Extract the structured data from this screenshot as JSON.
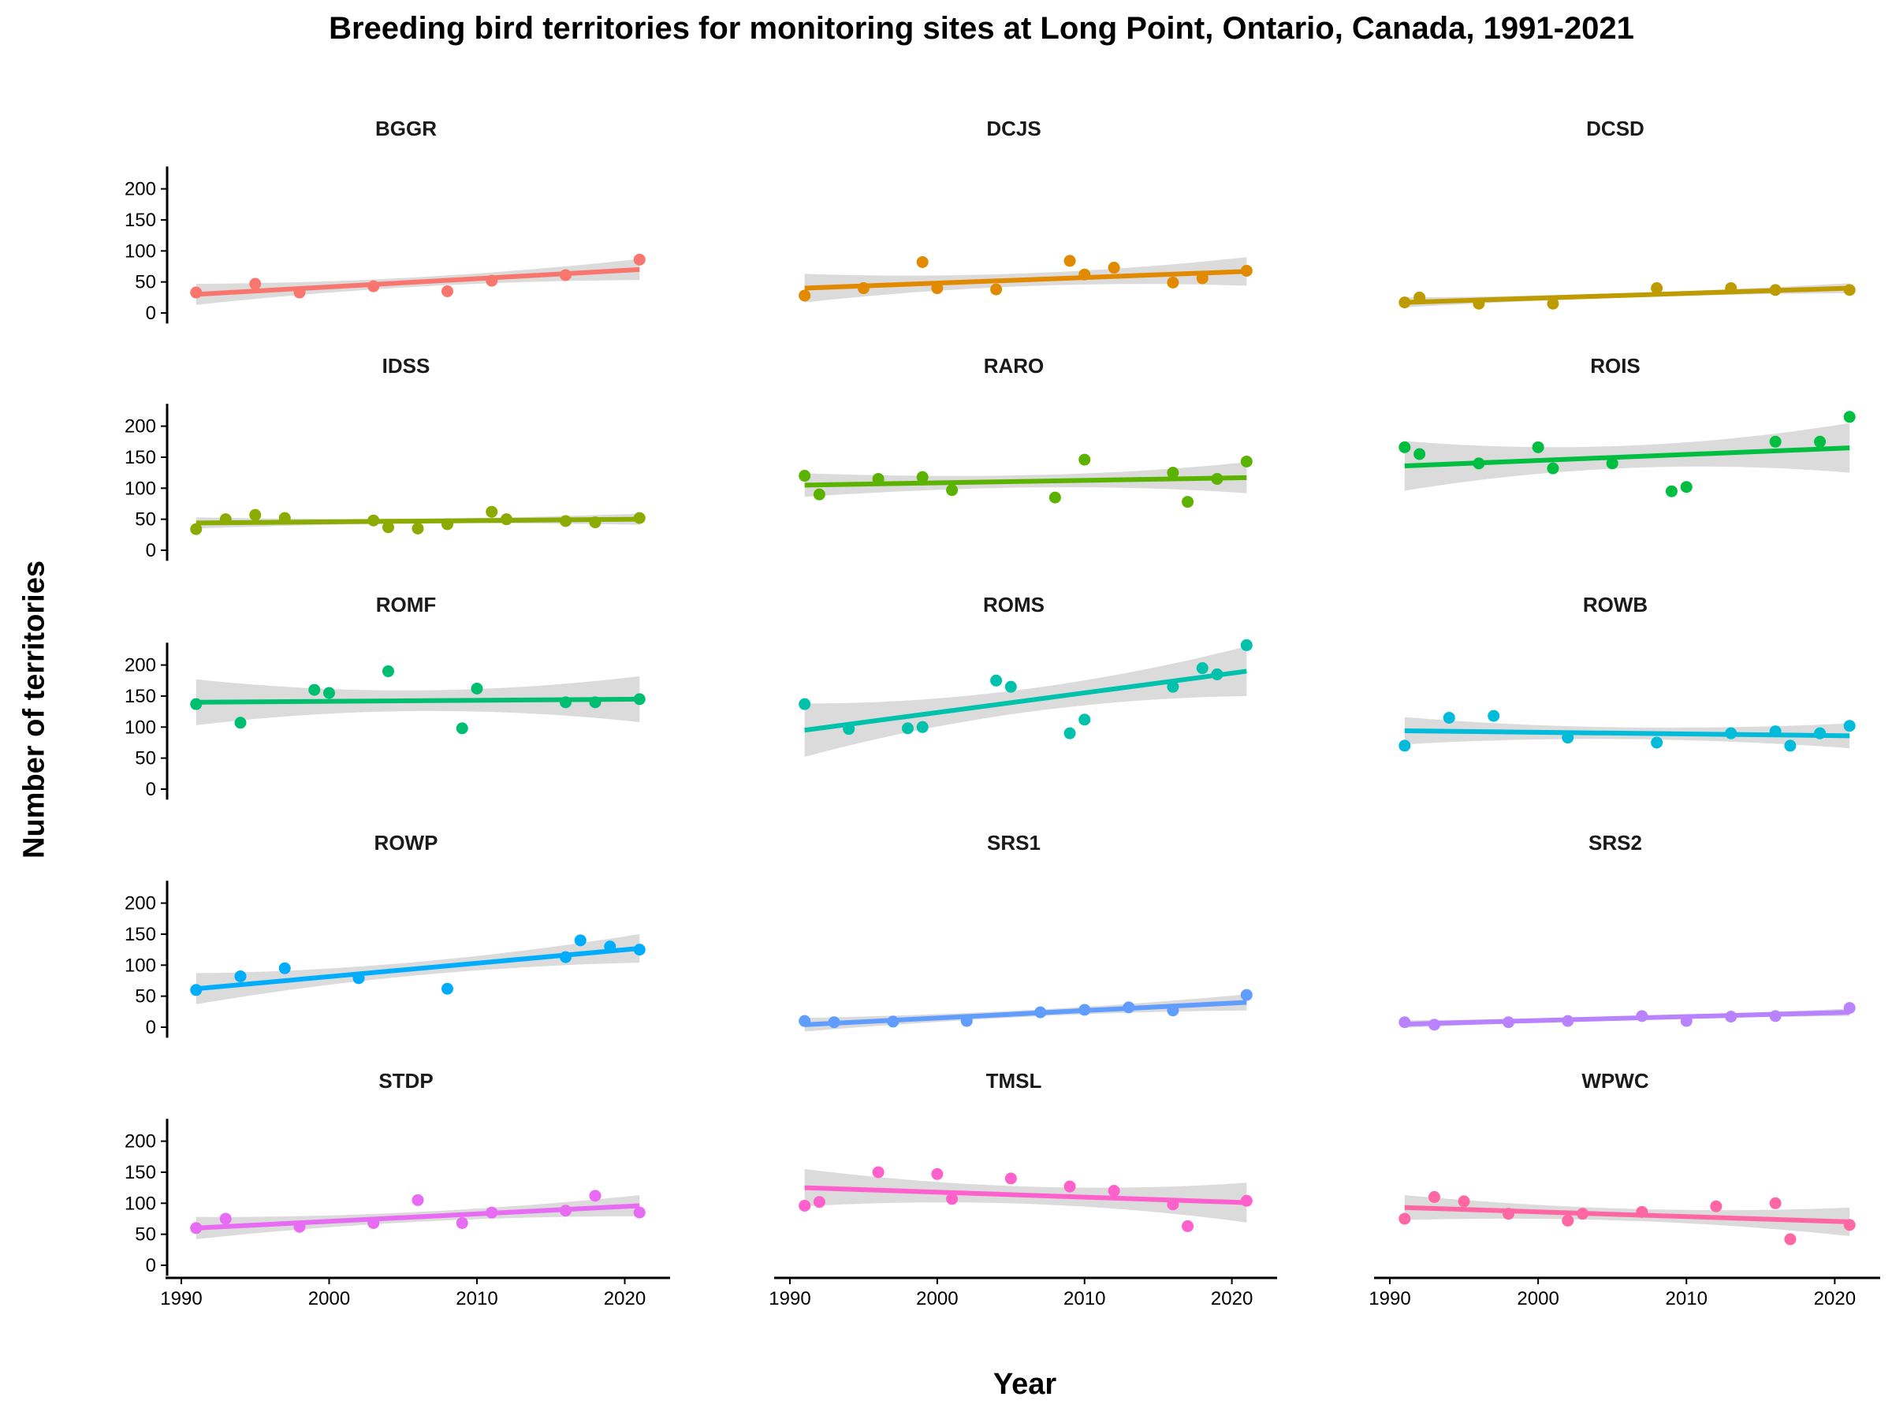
{
  "chart_data": {
    "type": "scatter",
    "title": "Breeding bird territories for monitoring sites at Long Point, Ontario, Canada, 1991-2021",
    "xlabel": "Year",
    "ylabel": "Number of territories",
    "xlim": [
      1990,
      2022
    ],
    "ylim": [
      0,
      240
    ],
    "xticks": [
      1990,
      2000,
      2010,
      2020
    ],
    "yticks": [
      0,
      50,
      100,
      150,
      200
    ],
    "panels": [
      {
        "name": "BGGR",
        "color": "#F8766D",
        "x": [
          1991,
          1995,
          1998,
          2003,
          2008,
          2011,
          2016,
          2021
        ],
        "y": [
          33,
          47,
          33,
          43,
          35,
          52,
          61,
          86
        ],
        "fit": [
          30,
          70
        ],
        "ci_width": [
          17,
          17
        ]
      },
      {
        "name": "DCJS",
        "color": "#E18A00",
        "x": [
          1991,
          1995,
          1999,
          2000,
          2004,
          2009,
          2010,
          2012,
          2016,
          2018,
          2021
        ],
        "y": [
          28,
          40,
          82,
          40,
          38,
          84,
          62,
          73,
          49,
          56,
          68
        ],
        "fit": [
          40,
          67
        ],
        "ci_width": [
          23,
          23
        ]
      },
      {
        "name": "DCSD",
        "color": "#BE9C00",
        "x": [
          1991,
          1992,
          1996,
          2001,
          2008,
          2013,
          2016,
          2021
        ],
        "y": [
          17,
          25,
          15,
          15,
          40,
          40,
          37,
          37
        ],
        "fit": [
          17,
          40
        ],
        "ci_width": [
          8,
          8
        ]
      },
      {
        "name": "IDSS",
        "color": "#8CAB00",
        "x": [
          1991,
          1993,
          1995,
          1997,
          2003,
          2004,
          2006,
          2008,
          2011,
          2012,
          2016,
          2018,
          2021
        ],
        "y": [
          34,
          50,
          57,
          52,
          48,
          37,
          35,
          42,
          62,
          50,
          47,
          45,
          52
        ],
        "fit": [
          44,
          50
        ],
        "ci_width": [
          9,
          9
        ]
      },
      {
        "name": "RARO",
        "color": "#24B700",
        "x": [
          1991,
          1992,
          1996,
          1999,
          2001,
          2008,
          2010,
          2016,
          2017,
          2019,
          2021
        ],
        "y": [
          120,
          90,
          115,
          118,
          97,
          85,
          146,
          125,
          78,
          115,
          143
        ],
        "fit": [
          105,
          117
        ],
        "ci_width": [
          19,
          25
        ]
      },
      {
        "name": "ROIS",
        "color": "#00BE70",
        "x": [
          1991,
          1992,
          1996,
          2000,
          2001,
          2005,
          2009,
          2010,
          2016,
          2019,
          2021
        ],
        "y": [
          166,
          155,
          140,
          166,
          132,
          140,
          95,
          102,
          175,
          175,
          215
        ],
        "fit": [
          136,
          165
        ],
        "ci_width": [
          40,
          40
        ]
      },
      {
        "name": "ROMF",
        "color": "#00C1AB",
        "x": [
          1991,
          1994,
          1999,
          2000,
          2004,
          2010,
          2009,
          2016,
          2018,
          2021
        ],
        "y": [
          137,
          107,
          160,
          155,
          190,
          162,
          98,
          140,
          140,
          145
        ],
        "fit": [
          140,
          145
        ],
        "ci_width": [
          37,
          37
        ]
      },
      {
        "name": "ROMS",
        "color": "#00BBDA",
        "x": [
          1991,
          1994,
          1998,
          1999,
          2004,
          2005,
          2009,
          2010,
          2016,
          2018,
          2019,
          2021
        ],
        "y": [
          137,
          97,
          98,
          100,
          175,
          165,
          90,
          112,
          165,
          195,
          185,
          232
        ],
        "fit": [
          95,
          190
        ],
        "ci_width": [
          43,
          40
        ]
      },
      {
        "name": "ROWB",
        "color": "#00ACFC",
        "x": [
          1991,
          1994,
          1997,
          2002,
          2008,
          2013,
          2016,
          2017,
          2019,
          2021
        ],
        "y": [
          70,
          115,
          118,
          83,
          75,
          90,
          93,
          70,
          90,
          102
        ],
        "fit": [
          94,
          86
        ],
        "ci_width": [
          22,
          20
        ]
      },
      {
        "name": "ROWP",
        "color": "#8B93FF",
        "x": [
          1991,
          1994,
          1997,
          2002,
          2008,
          2016,
          2017,
          2019,
          2021
        ],
        "y": [
          60,
          82,
          95,
          79,
          62,
          113,
          140,
          130,
          125
        ],
        "fit": [
          62,
          127
        ],
        "ci_width": [
          25,
          23
        ]
      },
      {
        "name": "SRS1",
        "color": "#D575FE",
        "x": [
          1991,
          1993,
          1997,
          2002,
          2007,
          2010,
          2013,
          2016,
          2021
        ],
        "y": [
          10,
          8,
          9,
          10,
          24,
          28,
          32,
          27,
          52
        ],
        "fit": [
          4,
          40
        ],
        "ci_width": [
          11,
          13
        ]
      },
      {
        "name": "SRS2",
        "color": "#F962DD",
        "x": [
          1991,
          1993,
          1998,
          2002,
          2007,
          2010,
          2013,
          2016,
          2021
        ],
        "y": [
          8,
          4,
          8,
          10,
          18,
          10,
          17,
          18,
          31
        ],
        "fit": [
          5,
          24
        ],
        "ci_width": [
          6,
          6
        ]
      },
      {
        "name": "STDP",
        "color": "#FF65AC",
        "x": [
          1991,
          1993,
          1998,
          2003,
          2006,
          2009,
          2011,
          2016,
          2018,
          2021
        ],
        "y": [
          60,
          75,
          62,
          68,
          105,
          68,
          85,
          88,
          112,
          85
        ],
        "fit": [
          60,
          96
        ],
        "ci_width": [
          18,
          17
        ]
      },
      {
        "name": "TMSL",
        "color": "#FF65AC",
        "x": [
          1991,
          1992,
          1996,
          2000,
          2001,
          2005,
          2009,
          2012,
          2016,
          2017,
          2021
        ],
        "y": [
          96,
          102,
          150,
          147,
          107,
          140,
          127,
          120,
          98,
          63,
          104
        ],
        "fit": [
          125,
          101
        ],
        "ci_width": [
          30,
          32
        ]
      },
      {
        "name": "WPWC",
        "color": "#FB61D7",
        "x": [
          1991,
          1993,
          1995,
          1998,
          2002,
          2003,
          2007,
          2012,
          2016,
          2017,
          2021
        ],
        "y": [
          75,
          110,
          103,
          83,
          72,
          83,
          86,
          95,
          100,
          42,
          65
        ],
        "fit": [
          93,
          70
        ],
        "ci_width": [
          20,
          23
        ]
      }
    ]
  }
}
